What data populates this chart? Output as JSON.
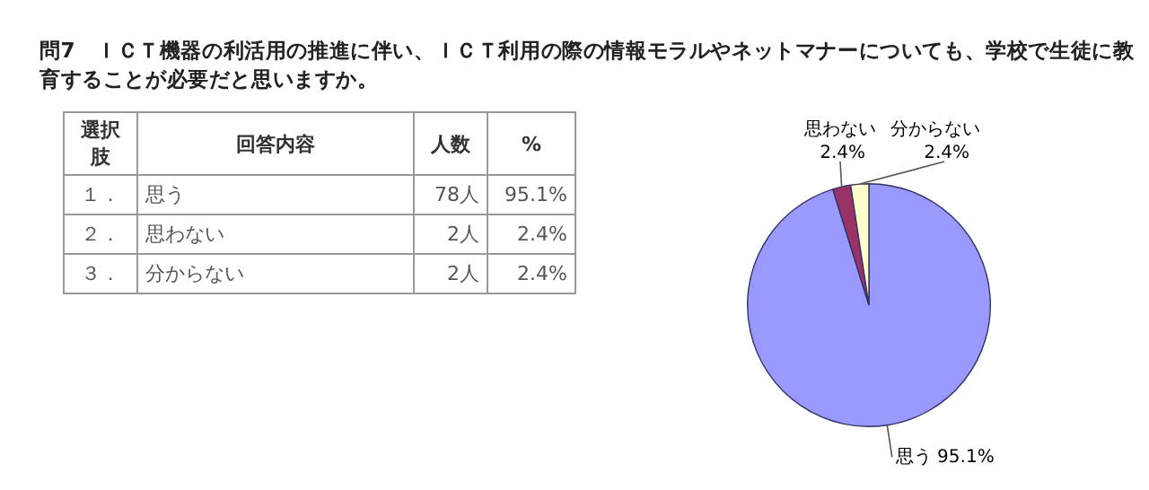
{
  "chart_data": [
    {
      "type": "other",
      "title": "問7　ＩＣＴ機器の利活用の推進に伴い、ＩＣＴ利用の際の情報モラルやネットマナーについても、学校で生徒に教育することが必要だと思いますか。",
      "annotations": [
        "選択肢",
        "回答内容",
        "人数",
        "%",
        "１．",
        "思う",
        "78人",
        "95.1%",
        "２．",
        "思わない",
        "2人",
        "2.4%",
        "３．",
        "分からない",
        "2人",
        "2.4%"
      ]
    },
    {
      "type": "pie",
      "categories": [
        "思う",
        "思わない",
        "分からない"
      ],
      "values": [
        95.1,
        2.4,
        2.4
      ],
      "colors": [
        "#9999ff",
        "#993366",
        "#ffffcc"
      ],
      "value_labels": [
        "95.1%",
        "2.4%",
        "2.4%"
      ]
    }
  ]
}
